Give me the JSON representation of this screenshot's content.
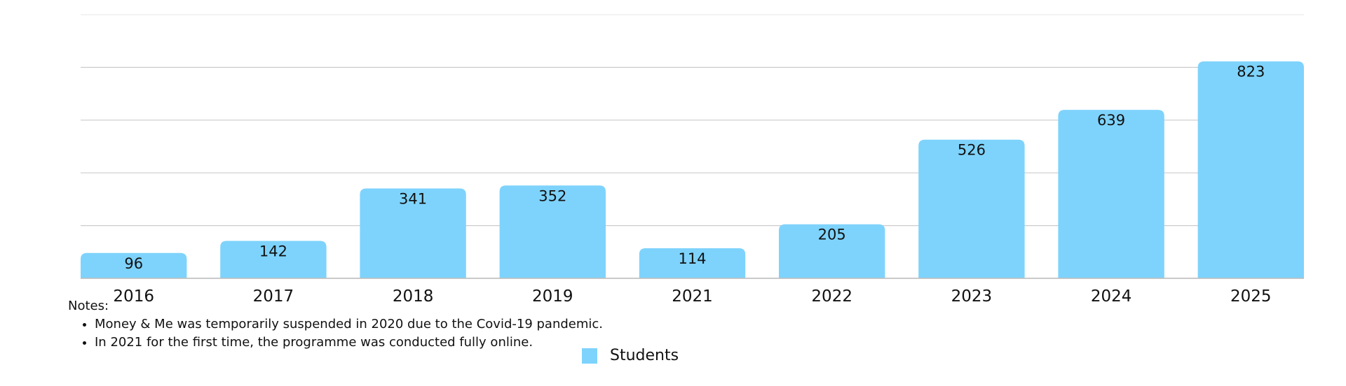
{
  "chart_data": {
    "type": "bar",
    "categories": [
      "2016",
      "2017",
      "2018",
      "2019",
      "2021",
      "2022",
      "2023",
      "2024",
      "2025"
    ],
    "series": [
      {
        "name": "Students",
        "values": [
          96,
          142,
          341,
          352,
          114,
          205,
          526,
          639,
          823
        ],
        "color": "#7ED3FC"
      }
    ],
    "ylim": [
      0,
      1000
    ],
    "grid": true,
    "legend": "bottom-center",
    "data_labels": true
  },
  "notes": {
    "title": "Notes:",
    "items": [
      "Money & Me was temporarily suspended in 2020 due to the Covid-19 pandemic.",
      "In 2021 for the first time, the programme was conducted fully online."
    ]
  },
  "colors": {
    "bar": "#7ED3FC",
    "grid": "#cccccc",
    "axis": "#bdbdbd"
  }
}
